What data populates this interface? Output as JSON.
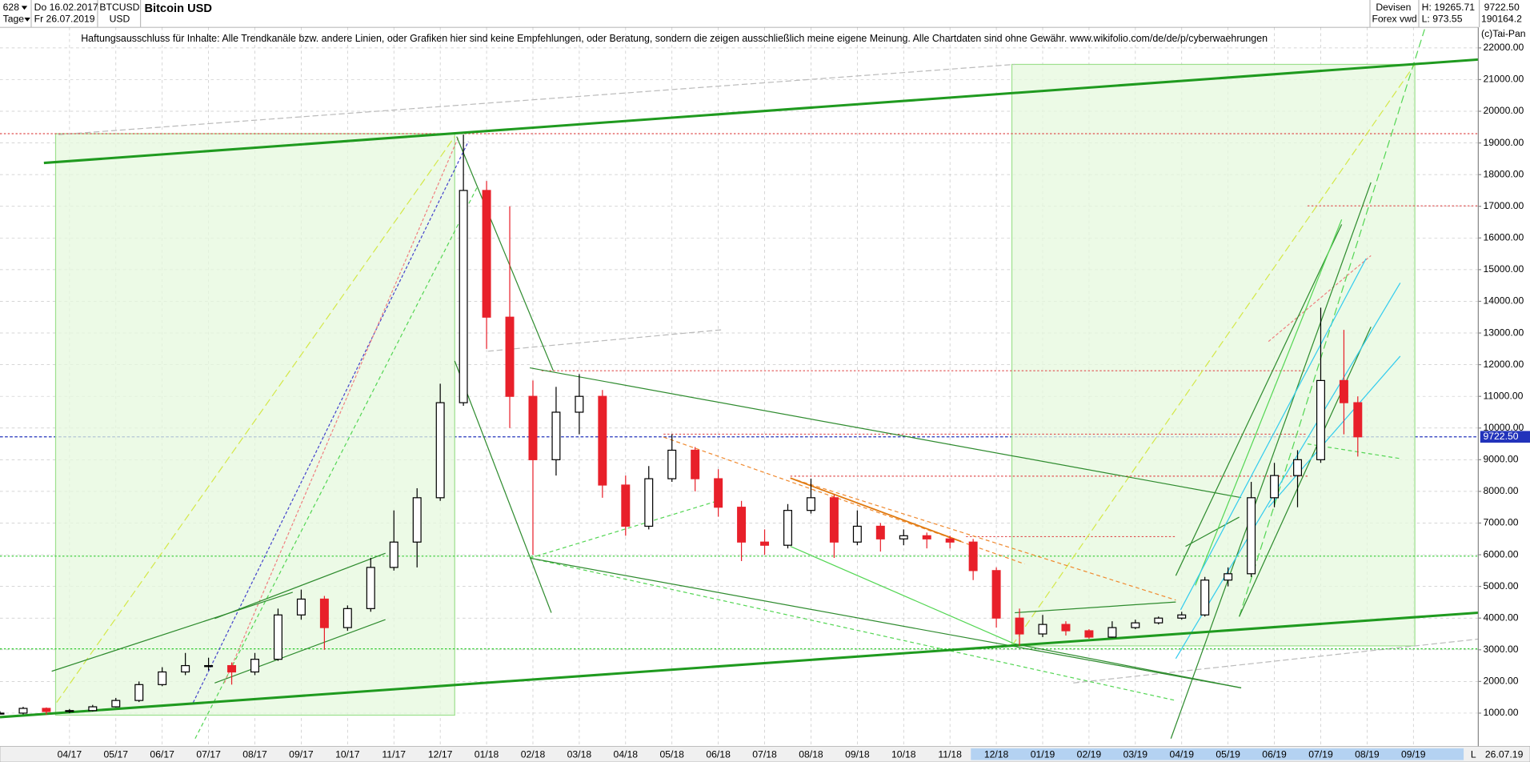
{
  "header": {
    "period": "628",
    "start": "Do 16.02.2017",
    "interval": "Tage",
    "end": "Fr 26.07.2019",
    "symbol": "BTCUSD",
    "currency": "USD",
    "market": "Devisen",
    "source": "Forex vwd",
    "high": "H: 19265.71",
    "low": "L: 973.55",
    "last": "9722.50",
    "volume": "190164.2",
    "copyright": "(c)Tai-Pan",
    "scale_toggle": "L",
    "end_short": "26.07.19"
  },
  "chart_data": {
    "type": "candlestick",
    "title": "Bitcoin USD",
    "subtitle": "Haftungsausschluss für Inhalte: Alle Trendkanäle bzw. andere Linien, oder Grafiken hier sind keine Empfehlungen, oder Beratung, sondern die zeigen ausschließlich meine eigene Meinung. Alle Chartdaten sind ohne Gewähr.  www.wikifolio.com/de/de/p/cyberwaehrungen",
    "x": [
      1.5,
      2,
      2.5,
      3,
      3.5,
      4,
      4.5,
      5,
      5.5,
      6,
      6.5,
      7,
      7.5,
      8,
      8.5,
      9,
      9.5,
      10,
      10.5,
      11,
      11.5,
      12,
      12.5,
      13,
      13.5,
      14,
      14.5,
      15,
      15.5,
      16,
      16.5,
      17,
      17.5,
      18,
      18.5,
      19,
      19.5,
      20,
      20.5,
      21,
      21.5,
      22,
      22.5,
      23,
      23.5,
      24,
      24.5,
      25,
      25.5,
      26,
      26.5,
      27,
      27.5,
      28,
      28.5,
      29,
      29.5,
      30,
      30.5,
      30.8
    ],
    "open": [
      990,
      1000,
      1150,
      1050,
      1080,
      1200,
      1400,
      1900,
      2300,
      2500,
      2500,
      2300,
      2700,
      4100,
      4600,
      3700,
      4300,
      5600,
      6400,
      7800,
      10800,
      17500,
      13500,
      11000,
      9000,
      10500,
      11000,
      8200,
      6900,
      8400,
      9300,
      8400,
      7500,
      6400,
      6300,
      7400,
      7800,
      6400,
      6900,
      6500,
      6600,
      6500,
      6400,
      5500,
      4000,
      3500,
      3800,
      3600,
      3400,
      3700,
      3850,
      4000,
      4100,
      5200,
      5400,
      7800,
      8500,
      9000,
      11500,
      10800
    ],
    "high": [
      1060,
      1200,
      1180,
      1130,
      1260,
      1480,
      2000,
      2450,
      2900,
      2750,
      2600,
      2900,
      4300,
      4900,
      4700,
      4400,
      5900,
      7400,
      8100,
      11400,
      19265.71,
      17800,
      17000,
      11500,
      11300,
      11700,
      11200,
      8500,
      8800,
      9800,
      9400,
      8700,
      7700,
      6800,
      7600,
      8400,
      7900,
      7400,
      7000,
      6800,
      6700,
      6600,
      6500,
      5600,
      4300,
      4100,
      3900,
      3650,
      3900,
      3950,
      4050,
      4200,
      5300,
      5600,
      8300,
      8900,
      9300,
      13800,
      13100,
      11000
    ],
    "low": [
      973.55,
      960,
      950,
      1000,
      1050,
      1180,
      1350,
      1850,
      2200,
      2350,
      1900,
      2200,
      2650,
      3950,
      3000,
      3600,
      4200,
      5500,
      5600,
      7700,
      10700,
      12500,
      10000,
      6000,
      8500,
      9800,
      7800,
      6600,
      6800,
      8300,
      8000,
      7200,
      5800,
      6000,
      6200,
      7300,
      5900,
      6300,
      6100,
      6300,
      6200,
      6200,
      5200,
      3700,
      3130,
      3400,
      3450,
      3350,
      3380,
      3650,
      3800,
      3950,
      4050,
      5000,
      5300,
      7500,
      7500,
      8900,
      9800,
      9100
    ],
    "close": [
      1000,
      1150,
      1050,
      1080,
      1200,
      1400,
      1900,
      2300,
      2500,
      2500,
      2300,
      2700,
      4100,
      4600,
      3700,
      4300,
      5600,
      6400,
      7800,
      10800,
      17500,
      13500,
      11000,
      9000,
      10500,
      11000,
      8200,
      6900,
      8400,
      9300,
      8400,
      7500,
      6400,
      6300,
      7400,
      7800,
      6400,
      6900,
      6500,
      6600,
      6500,
      6400,
      5500,
      4000,
      3500,
      3800,
      3600,
      3400,
      3700,
      3850,
      4000,
      4100,
      5200,
      5400,
      7800,
      8500,
      9000,
      11500,
      10800,
      9722.5
    ],
    "up_color": "#000000",
    "down_color": "#e8202a",
    "last_price": {
      "value": 9722.5,
      "label": "9722.50"
    },
    "last_price_color": "#2233bb",
    "xlim": [
      1.5,
      33.4
    ],
    "xticks": [
      {
        "value": 3,
        "label": "04/17"
      },
      {
        "value": 4,
        "label": "05/17"
      },
      {
        "value": 5,
        "label": "06/17"
      },
      {
        "value": 6,
        "label": "07/17"
      },
      {
        "value": 7,
        "label": "08/17"
      },
      {
        "value": 8,
        "label": "09/17"
      },
      {
        "value": 9,
        "label": "10/17"
      },
      {
        "value": 10,
        "label": "11/17"
      },
      {
        "value": 11,
        "label": "12/17"
      },
      {
        "value": 12,
        "label": "01/18"
      },
      {
        "value": 13,
        "label": "02/18"
      },
      {
        "value": 14,
        "label": "03/18"
      },
      {
        "value": 15,
        "label": "04/18"
      },
      {
        "value": 16,
        "label": "05/18"
      },
      {
        "value": 17,
        "label": "06/18"
      },
      {
        "value": 18,
        "label": "07/18"
      },
      {
        "value": 19,
        "label": "08/18"
      },
      {
        "value": 20,
        "label": "09/18"
      },
      {
        "value": 21,
        "label": "10/18"
      },
      {
        "value": 22,
        "label": "11/18"
      },
      {
        "value": 23,
        "label": "12/18"
      },
      {
        "value": 24,
        "label": "01/19"
      },
      {
        "value": 25,
        "label": "02/19"
      },
      {
        "value": 26,
        "label": "03/19"
      },
      {
        "value": 27,
        "label": "04/19"
      },
      {
        "value": 28,
        "label": "05/19"
      },
      {
        "value": 29,
        "label": "06/19"
      },
      {
        "value": 30,
        "label": "07/19"
      },
      {
        "value": 31,
        "label": "08/19"
      },
      {
        "value": 32,
        "label": "09/19"
      }
    ],
    "ylim": [
      -50,
      22650
    ],
    "yticks": [
      {
        "value": 1000,
        "label": "1000.00"
      },
      {
        "value": 2000,
        "label": "2000.00"
      },
      {
        "value": 3000,
        "label": "3000.00"
      },
      {
        "value": 4000,
        "label": "4000.00"
      },
      {
        "value": 5000,
        "label": "5000.00"
      },
      {
        "value": 6000,
        "label": "6000.00"
      },
      {
        "value": 7000,
        "label": "7000.00"
      },
      {
        "value": 8000,
        "label": "8000.00"
      },
      {
        "value": 9000,
        "label": "9000.00"
      },
      {
        "value": 10000,
        "label": "10000.00"
      },
      {
        "value": 11000,
        "label": "11000.00"
      },
      {
        "value": 12000,
        "label": "12000.00"
      },
      {
        "value": 13000,
        "label": "13000.00"
      },
      {
        "value": 14000,
        "label": "14000.00"
      },
      {
        "value": 15000,
        "label": "15000.00"
      },
      {
        "value": 16000,
        "label": "16000.00"
      },
      {
        "value": 17000,
        "label": "17000.00"
      },
      {
        "value": 18000,
        "label": "18000.00"
      },
      {
        "value": 19000,
        "label": "19000.00"
      },
      {
        "value": 20000,
        "label": "20000.00"
      },
      {
        "value": 21000,
        "label": "21000.00"
      },
      {
        "value": 22000,
        "label": "22000.00"
      }
    ],
    "grid": true
  }
}
